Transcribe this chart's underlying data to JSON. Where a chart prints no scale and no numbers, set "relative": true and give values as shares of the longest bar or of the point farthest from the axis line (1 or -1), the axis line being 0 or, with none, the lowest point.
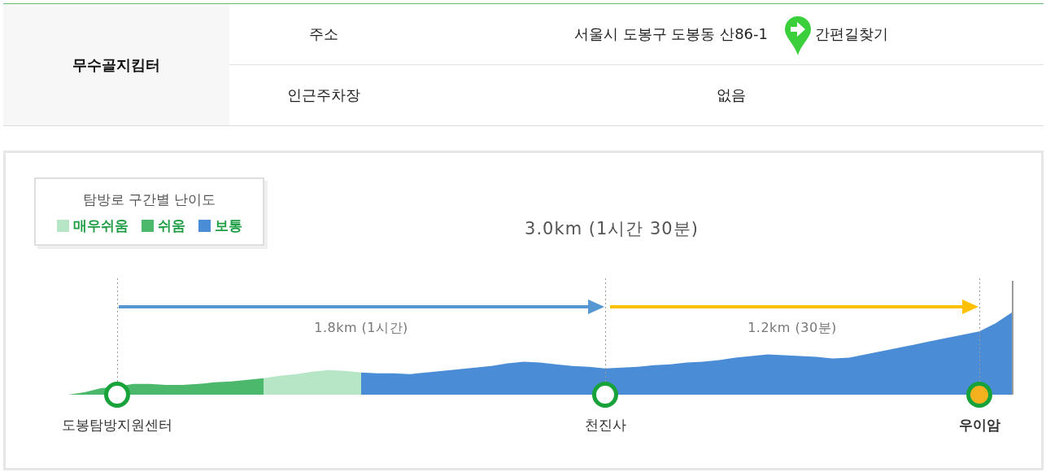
{
  "chart_data": {
    "type": "area",
    "title": "3.0km (1시간 30분)",
    "legend_title": "탐방로 구간별 난이도",
    "legend": "top left",
    "relative": true,
    "categories": [
      null,
      null,
      null,
      null,
      "도봉탐방지원센터",
      null,
      null,
      null,
      null,
      null,
      null,
      null,
      null,
      null,
      null,
      null,
      null,
      null,
      null,
      null,
      null,
      null,
      null,
      null,
      null,
      null,
      null,
      null,
      null,
      null,
      null,
      null,
      null,
      null,
      "천진사",
      null,
      null,
      null,
      null,
      null,
      null,
      null,
      null,
      null,
      null,
      null,
      null,
      null,
      null,
      null,
      null,
      null,
      null,
      null,
      null,
      null,
      null,
      "우이암",
      null,
      null
    ],
    "series": [
      {
        "name": "매우쉬움",
        "color": "#b6e6c6",
        "values": [
          null,
          null,
          null,
          null,
          null,
          null,
          null,
          null,
          null,
          null,
          null,
          null,
          null,
          0.2,
          0.23,
          0.25,
          0.28,
          0.3,
          0.29,
          0.27,
          null,
          null,
          null,
          null,
          null,
          null,
          null,
          null,
          null,
          null,
          null,
          null,
          null,
          null,
          null,
          null,
          null,
          null,
          null,
          null,
          null,
          null,
          null,
          null,
          null,
          null,
          null,
          null,
          null,
          null,
          null,
          null,
          null,
          null,
          null,
          null,
          null,
          null,
          null,
          null
        ]
      },
      {
        "name": "쉬움",
        "color": "#4cb86b",
        "values": [
          0,
          0,
          0.03,
          0.08,
          0.1,
          0.13,
          0.13,
          0.12,
          0.12,
          0.13,
          0.15,
          0.16,
          0.18,
          0.2,
          null,
          null,
          null,
          null,
          null,
          null,
          null,
          null,
          null,
          null,
          null,
          null,
          null,
          null,
          null,
          null,
          null,
          null,
          null,
          null,
          null,
          null,
          null,
          null,
          null,
          null,
          null,
          null,
          null,
          null,
          null,
          null,
          null,
          null,
          null,
          null,
          null,
          null,
          null,
          null,
          null,
          null,
          null,
          null,
          null,
          null
        ]
      },
      {
        "name": "보통",
        "color": "#4a8cd6",
        "values": [
          null,
          null,
          null,
          null,
          null,
          null,
          null,
          null,
          null,
          null,
          null,
          null,
          null,
          null,
          null,
          null,
          null,
          null,
          null,
          0.27,
          0.26,
          0.26,
          0.25,
          0.27,
          0.29,
          0.31,
          0.33,
          0.35,
          0.38,
          0.4,
          0.39,
          0.37,
          0.35,
          0.34,
          0.32,
          0.33,
          0.34,
          0.36,
          0.37,
          0.39,
          0.4,
          0.42,
          0.45,
          0.47,
          0.49,
          0.48,
          0.47,
          0.46,
          0.44,
          0.45,
          0.49,
          0.53,
          0.57,
          0.61,
          0.65,
          0.69,
          0.73,
          0.77,
          0.87,
          1.0
        ]
      },
      {
        "type": "scatter",
        "x": [
          "도봉탐방지원센터",
          "천진사",
          "우이암"
        ],
        "values": [
          0,
          0,
          0
        ],
        "color": "#17a23a",
        "colors": [
          "#ffffff",
          "#ffffff",
          "#f6b21e"
        ],
        "marker": "circle"
      }
    ],
    "ref_lines": [
      {
        "axis": "x",
        "value": "도봉탐방지원센터",
        "line_style": "dotted",
        "color": "#999999"
      },
      {
        "axis": "x",
        "value": "천진사",
        "line_style": "dotted",
        "color": "#999999"
      },
      {
        "axis": "x",
        "value": "우이암",
        "line_style": "dotted",
        "color": "#999999"
      }
    ],
    "annotations": [
      "무수골지킴터",
      "주소",
      "서울시 도봉구 도봉동 산86-1",
      "간편길찾기",
      "인근주차장",
      "없음",
      "1.8km (1시간)",
      "1.2km (30분)"
    ]
  }
}
